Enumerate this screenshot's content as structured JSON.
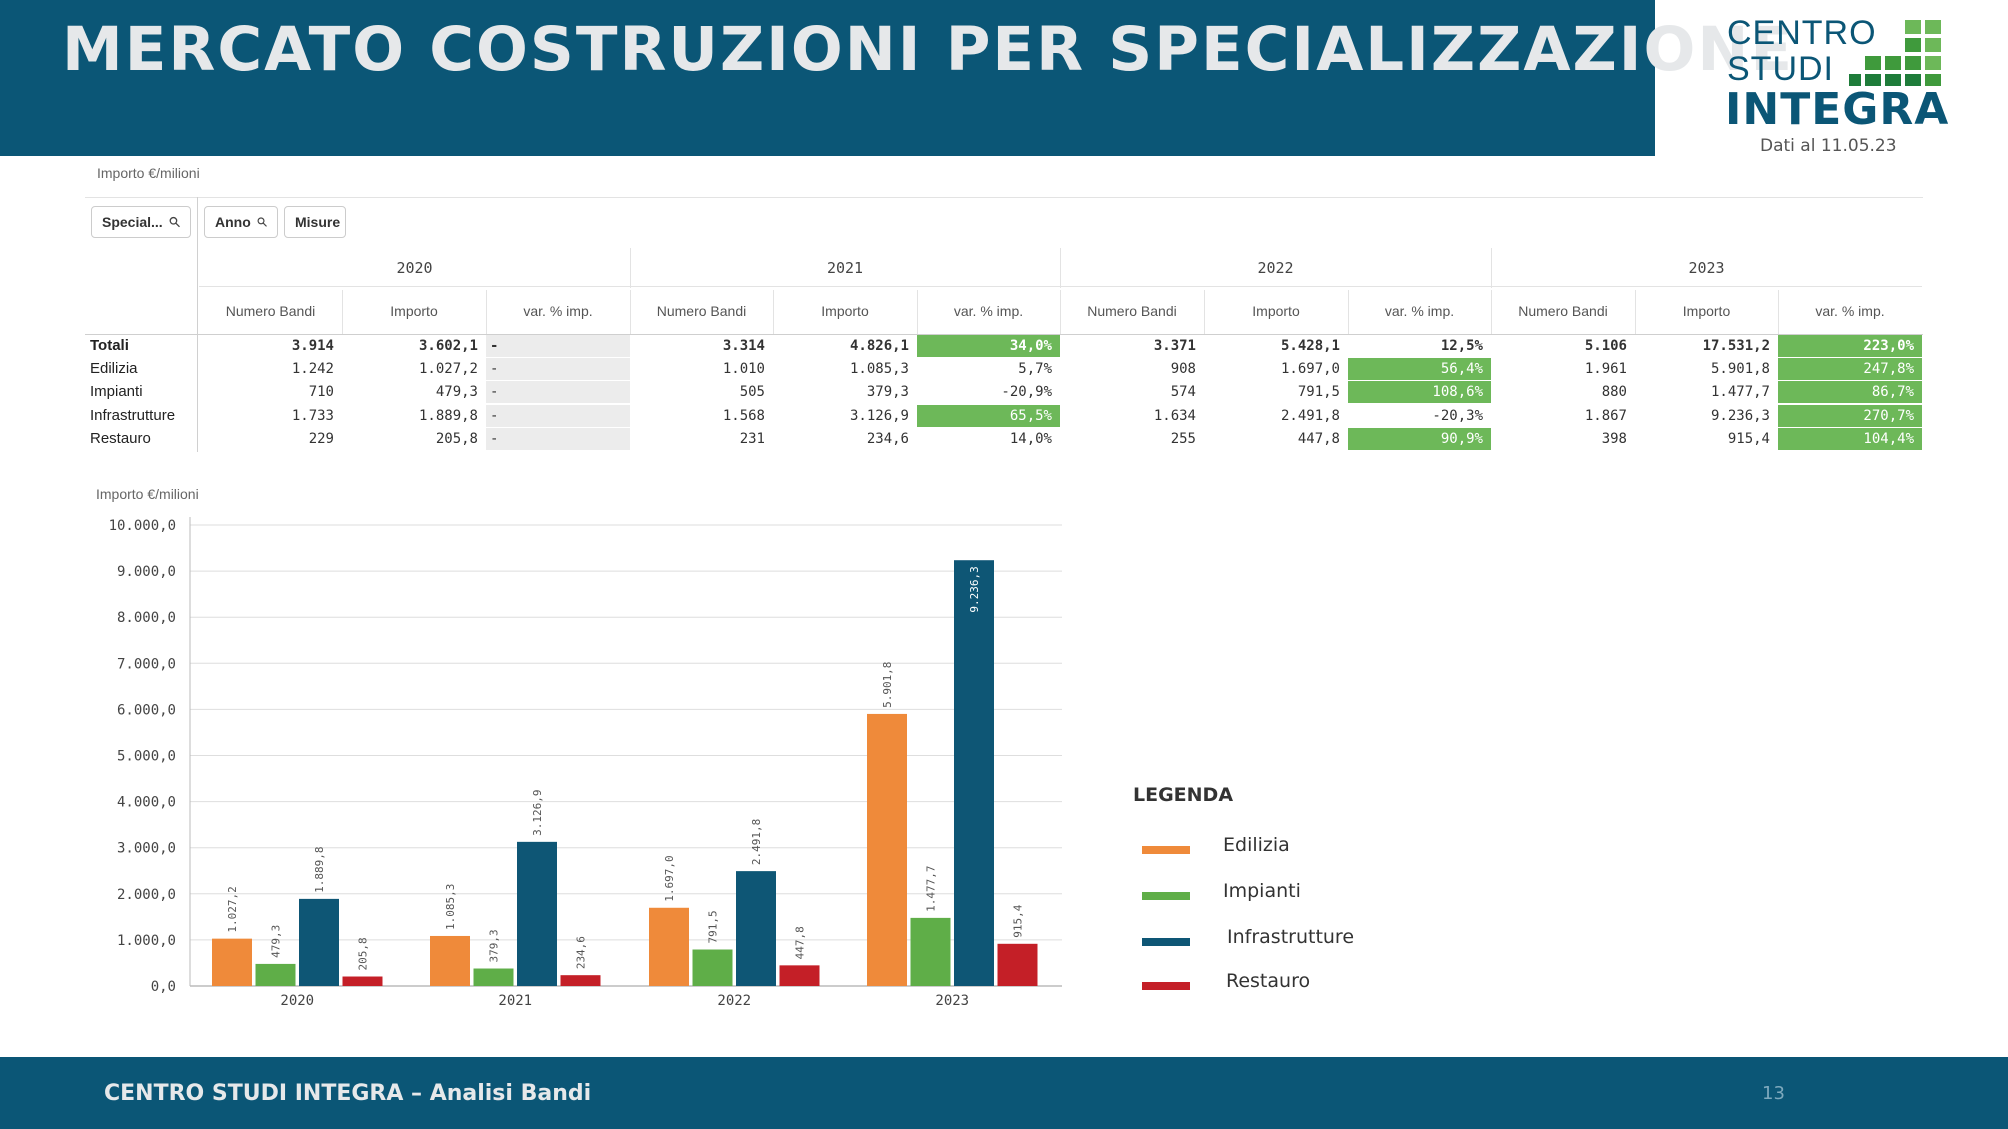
{
  "header": {
    "title": "MERCATO COSTRUZIONI PER SPECIALIZZAZIONE"
  },
  "logo": {
    "line1": "CENTRO",
    "line2": "STUDI",
    "line3": "INTEGRA",
    "date": "Dati al 11.05.23"
  },
  "colors": {
    "brand": "#0b5676",
    "highlight": "#6db859",
    "edilizia": "#ef8a3a",
    "impianti": "#5fae48",
    "infrastrutture": "#0e5675",
    "restauro": "#c41f27"
  },
  "table": {
    "unit_label": "Importo €/milioni",
    "filters": [
      {
        "label": "Special...",
        "icon": "search-icon"
      },
      {
        "label": "Anno",
        "icon": "search-icon"
      },
      {
        "label": "Misure"
      }
    ],
    "years": [
      "2020",
      "2021",
      "2022",
      "2023"
    ],
    "columns": [
      "Numero Bandi",
      "Importo",
      "var. % imp."
    ],
    "rows": [
      {
        "label": "Totali",
        "bold": true,
        "cells": [
          [
            "3.914",
            "3.602,1",
            "-"
          ],
          [
            "3.314",
            "4.826,1",
            "34,0%"
          ],
          [
            "3.371",
            "5.428,1",
            "12,5%"
          ],
          [
            "5.106",
            "17.531,2",
            "223,0%"
          ]
        ],
        "green": [
          false,
          true,
          false,
          true
        ]
      },
      {
        "label": "Edilizia",
        "bold": false,
        "cells": [
          [
            "1.242",
            "1.027,2",
            "-"
          ],
          [
            "1.010",
            "1.085,3",
            "5,7%"
          ],
          [
            "908",
            "1.697,0",
            "56,4%"
          ],
          [
            "1.961",
            "5.901,8",
            "247,8%"
          ]
        ],
        "green": [
          false,
          false,
          true,
          true
        ]
      },
      {
        "label": "Impianti",
        "bold": false,
        "cells": [
          [
            "710",
            "479,3",
            "-"
          ],
          [
            "505",
            "379,3",
            "-20,9%"
          ],
          [
            "574",
            "791,5",
            "108,6%"
          ],
          [
            "880",
            "1.477,7",
            "86,7%"
          ]
        ],
        "green": [
          false,
          false,
          true,
          true
        ]
      },
      {
        "label": "Infrastrutture",
        "bold": false,
        "cells": [
          [
            "1.733",
            "1.889,8",
            "-"
          ],
          [
            "1.568",
            "3.126,9",
            "65,5%"
          ],
          [
            "1.634",
            "2.491,8",
            "-20,3%"
          ],
          [
            "1.867",
            "9.236,3",
            "270,7%"
          ]
        ],
        "green": [
          false,
          true,
          false,
          true
        ]
      },
      {
        "label": "Restauro",
        "bold": false,
        "cells": [
          [
            "229",
            "205,8",
            "-"
          ],
          [
            "231",
            "234,6",
            "14,0%"
          ],
          [
            "255",
            "447,8",
            "90,9%"
          ],
          [
            "398",
            "915,4",
            "104,4%"
          ]
        ],
        "green": [
          false,
          false,
          true,
          true
        ]
      }
    ]
  },
  "chart_data": {
    "type": "bar",
    "ylabel": "Importo €/milioni",
    "categories": [
      "2020",
      "2021",
      "2022",
      "2023"
    ],
    "ylim": [
      0,
      10000
    ],
    "yticks": [
      "0,0",
      "1.000,0",
      "2.000,0",
      "3.000,0",
      "4.000,0",
      "5.000,0",
      "6.000,0",
      "7.000,0",
      "8.000,0",
      "9.000,0",
      "10.000,0"
    ],
    "grid": true,
    "series": [
      {
        "name": "Edilizia",
        "color": "#ef8a3a",
        "values": [
          1027.2,
          1085.3,
          1697.0,
          5901.8
        ],
        "labels": [
          "1.027,2",
          "1.085,3",
          "1.697,0",
          "5.901,8"
        ]
      },
      {
        "name": "Impianti",
        "color": "#5fae48",
        "values": [
          479.3,
          379.3,
          791.5,
          1477.7
        ],
        "labels": [
          "479,3",
          "379,3",
          "791,5",
          "1.477,7"
        ]
      },
      {
        "name": "Infrastrutture",
        "color": "#0e5675",
        "values": [
          1889.8,
          3126.9,
          2491.8,
          9236.3
        ],
        "labels": [
          "1.889,8",
          "3.126,9",
          "2.491,8",
          "9.236,3"
        ]
      },
      {
        "name": "Restauro",
        "color": "#c41f27",
        "values": [
          205.8,
          234.6,
          447.8,
          915.4
        ],
        "labels": [
          "205,8",
          "234,6",
          "447,8",
          "915,4"
        ]
      }
    ],
    "legend": {
      "title": "LEGENDA",
      "position": "right"
    }
  },
  "footer": {
    "text": "CENTRO STUDI INTEGRA – Analisi Bandi",
    "page": "13"
  }
}
